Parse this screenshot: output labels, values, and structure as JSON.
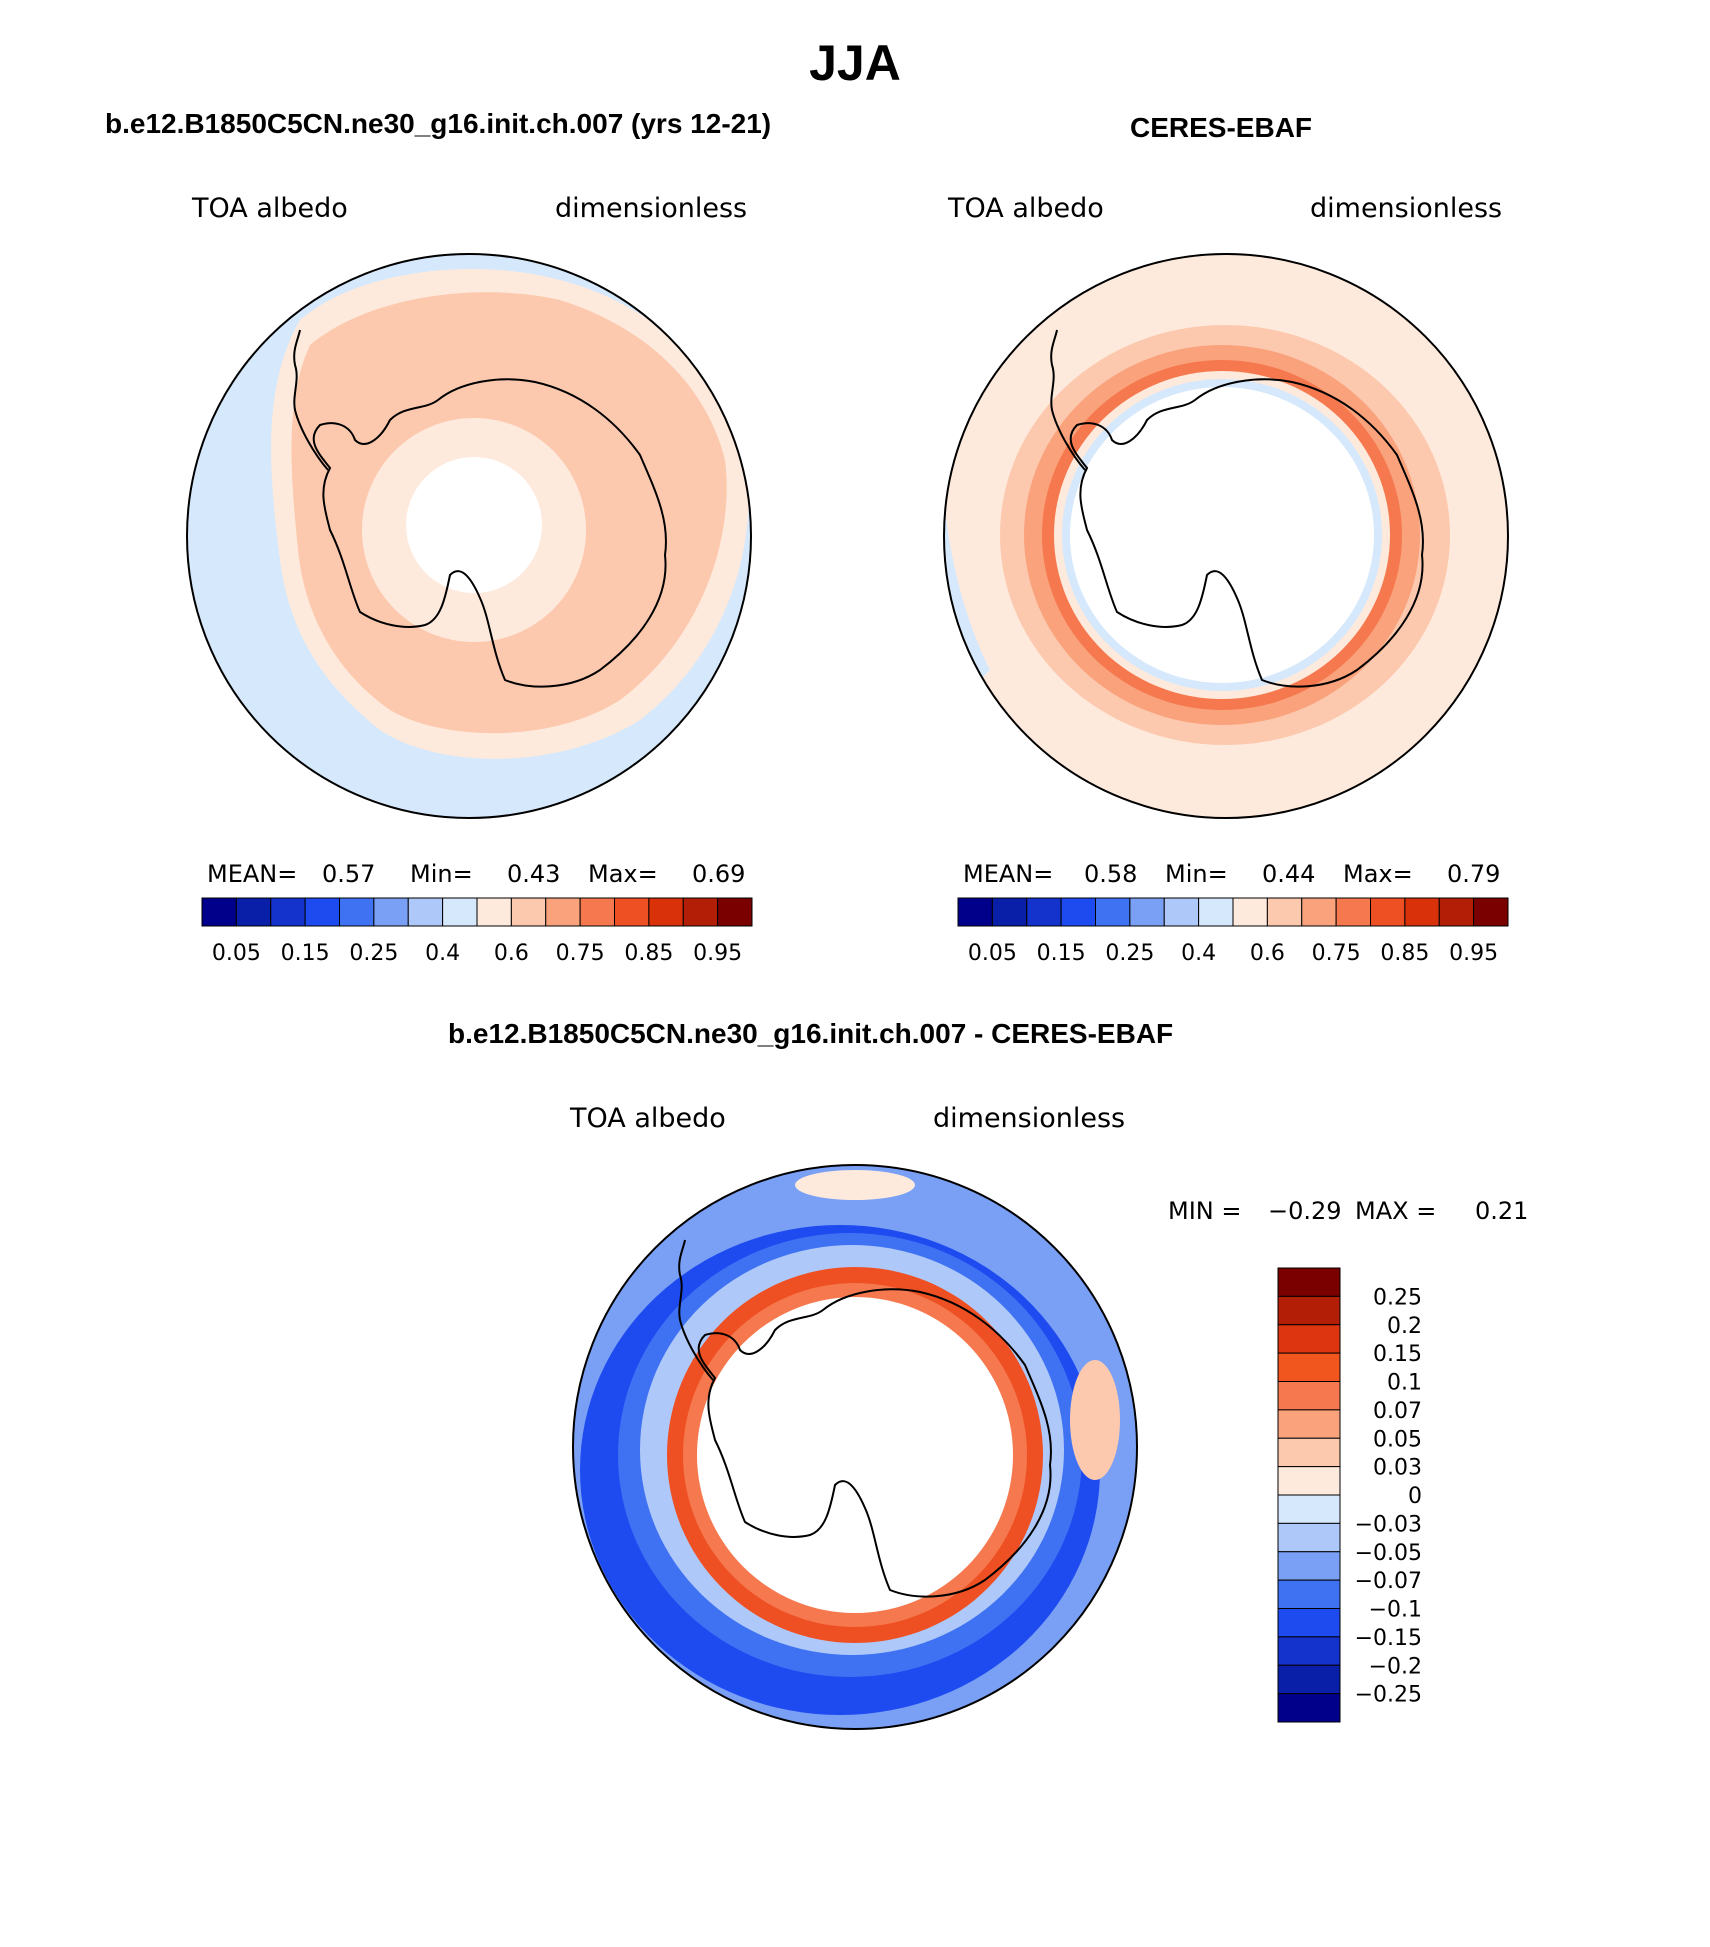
{
  "season": "JJA",
  "panels": [
    {
      "title": "b.e12.B1850C5CN.ne30_g16.init.ch.007 (yrs 12-21)",
      "variable": "TOA albedo",
      "units": "dimensionless",
      "stats": {
        "mean_label": "MEAN=",
        "mean": "0.57",
        "min_label": "Min=",
        "min": "0.43",
        "max_label": "Max=",
        "max": "0.69"
      }
    },
    {
      "title": "CERES-EBAF",
      "variable": "TOA albedo",
      "units": "dimensionless",
      "stats": {
        "mean_label": "MEAN=",
        "mean": "0.58",
        "min_label": "Min=",
        "min": "0.44",
        "max_label": "Max=",
        "max": "0.79"
      }
    },
    {
      "title": "b.e12.B1850C5CN.ne30_g16.init.ch.007 - CERES-EBAF",
      "variable": "TOA albedo",
      "units": "dimensionless",
      "stats": {
        "min_label": "MIN =",
        "min": "−0.29",
        "max_label": "MAX =",
        "max": "0.21"
      }
    }
  ],
  "colorbar_main": {
    "colors": [
      "#00008b",
      "#0a1fa8",
      "#1432cc",
      "#1e4bf0",
      "#3f72f2",
      "#7aa0f5",
      "#aec9f9",
      "#d6e8fb",
      "#feeadc",
      "#fcc9ae",
      "#f9a27c",
      "#f6784e",
      "#ee5023",
      "#d9320a",
      "#b21e06",
      "#7a0000"
    ],
    "tick_labels": [
      "0.05",
      "0.15",
      "0.25",
      "0.4",
      "0.6",
      "0.75",
      "0.85",
      "0.95"
    ]
  },
  "colorbar_diff": {
    "colors": [
      "#7a0000",
      "#b21e06",
      "#dd3510",
      "#f2561f",
      "#f6784e",
      "#f9a27c",
      "#fcc9ae",
      "#feeadc",
      "#d6e8fb",
      "#aec9f9",
      "#7aa0f5",
      "#3f72f2",
      "#1e4bf0",
      "#1432cc",
      "#0a1fa8",
      "#00008b"
    ],
    "tick_labels": [
      "0.25",
      "0.2",
      "0.15",
      "0.1",
      "0.07",
      "0.05",
      "0.03",
      "0",
      "−0.03",
      "−0.05",
      "−0.07",
      "−0.1",
      "−0.15",
      "−0.2",
      "−0.25"
    ]
  }
}
